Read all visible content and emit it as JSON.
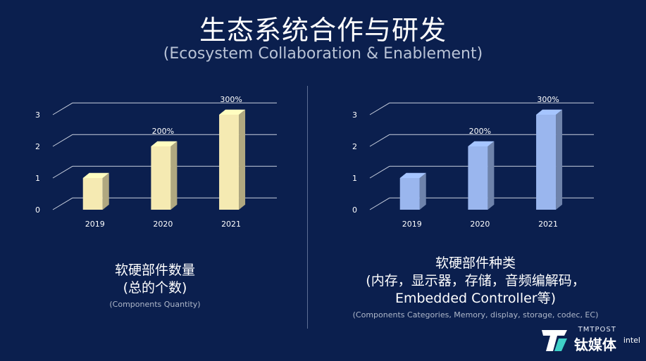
{
  "header": {
    "title": "生态系统合作与研发",
    "subtitle": "(Ecosystem Collaboration & Enablement)"
  },
  "left": {
    "caption_cn": [
      "软硬部件数量",
      "(总的个数)"
    ],
    "caption_en": "(Components Quantity)"
  },
  "right": {
    "caption_cn": [
      "软硬部件种类",
      "(内存，显示器，存储，音频编解码，",
      "Embedded Controller等)"
    ],
    "caption_en": "(Components Categories, Memory, display, storage, codec, EC)"
  },
  "logo": {
    "small": "TMTPOST",
    "big": "钛媒体",
    "partner": "intel"
  },
  "chart_data": [
    {
      "type": "bar",
      "categories": [
        "2019",
        "2020",
        "2021"
      ],
      "values": [
        1,
        2,
        3
      ],
      "data_labels": [
        "",
        "200%",
        "300%"
      ],
      "title": "",
      "xlabel": "",
      "ylabel": "",
      "ylim": [
        0,
        3
      ],
      "yticks": [
        0,
        1,
        2,
        3
      ],
      "grid": true,
      "style": "3d",
      "color": "#f5eab2"
    },
    {
      "type": "bar",
      "categories": [
        "2019",
        "2020",
        "2021"
      ],
      "values": [
        1,
        2,
        3
      ],
      "data_labels": [
        "",
        "200%",
        "300%"
      ],
      "title": "",
      "xlabel": "",
      "ylabel": "",
      "ylim": [
        0,
        3
      ],
      "yticks": [
        0,
        1,
        2,
        3
      ],
      "grid": true,
      "style": "3d",
      "color": "#9ab6ee"
    }
  ]
}
